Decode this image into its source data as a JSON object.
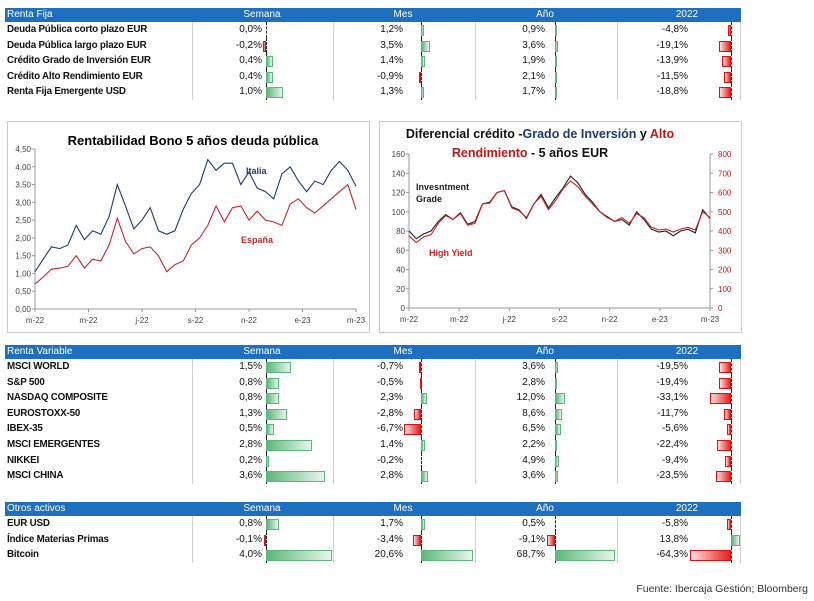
{
  "columns": [
    "Semana",
    "Mes",
    "Año",
    "2022"
  ],
  "tables": [
    {
      "title": "Renta Fija",
      "rows": [
        {
          "name": "Deuda Pública corto plazo EUR",
          "values": [
            "0,0%",
            "1,2%",
            "0,9%",
            "-4,8%"
          ],
          "nums": [
            0,
            1.2,
            0.9,
            -4.8
          ]
        },
        {
          "name": "Deuda Pública largo plazo EUR",
          "values": [
            "-0,2%",
            "3,5%",
            "3,6%",
            "-19,1%"
          ],
          "nums": [
            -0.2,
            3.5,
            3.6,
            -19.1
          ]
        },
        {
          "name": "Crédito Grado de Inversión EUR",
          "values": [
            "0,4%",
            "1,4%",
            "1,9%",
            "-13,9%"
          ],
          "nums": [
            0.4,
            1.4,
            1.9,
            -13.9
          ]
        },
        {
          "name": "Crédito Alto Rendimiento EUR",
          "values": [
            "0,4%",
            "-0,9%",
            "2,1%",
            "-11,5%"
          ],
          "nums": [
            0.4,
            -0.9,
            2.1,
            -11.5
          ]
        },
        {
          "name": "Renta Fija Emergente USD",
          "values": [
            "1,0%",
            "1,3%",
            "1,7%",
            "-18,8%"
          ],
          "nums": [
            1.0,
            1.3,
            1.7,
            -18.8
          ]
        }
      ]
    },
    {
      "title": "Renta Variable",
      "rows": [
        {
          "name": "MSCI WORLD",
          "values": [
            "1,5%",
            "-0,7%",
            "3,6%",
            "-19,5%"
          ],
          "nums": [
            1.5,
            -0.7,
            3.6,
            -19.5
          ]
        },
        {
          "name": "S&P 500",
          "values": [
            "0,8%",
            "-0,5%",
            "2,8%",
            "-19,4%"
          ],
          "nums": [
            0.8,
            -0.5,
            2.8,
            -19.4
          ]
        },
        {
          "name": "NASDAQ COMPOSITE",
          "values": [
            "0,8%",
            "2,3%",
            "12,0%",
            "-33,1%"
          ],
          "nums": [
            0.8,
            2.3,
            12.0,
            -33.1
          ]
        },
        {
          "name": "EUROSTOXX-50",
          "values": [
            "1,3%",
            "-2,8%",
            "8,6%",
            "-11,7%"
          ],
          "nums": [
            1.3,
            -2.8,
            8.6,
            -11.7
          ]
        },
        {
          "name": "IBEX-35",
          "values": [
            "0,5%",
            "-6,7%",
            "6,5%",
            "-5,6%"
          ],
          "nums": [
            0.5,
            -6.7,
            6.5,
            -5.6
          ]
        },
        {
          "name": "MSCI EMERGENTES",
          "values": [
            "2,8%",
            "1,4%",
            "2,2%",
            "-22,4%"
          ],
          "nums": [
            2.8,
            1.4,
            2.2,
            -22.4
          ]
        },
        {
          "name": "NIKKEI",
          "values": [
            "0,2%",
            "-0,2%",
            "4,9%",
            "-9,4%"
          ],
          "nums": [
            0.2,
            -0.2,
            4.9,
            -9.4
          ]
        },
        {
          "name": "MSCI CHINA",
          "values": [
            "3,6%",
            "2,8%",
            "3,6%",
            "-23,5%"
          ],
          "nums": [
            3.6,
            2.8,
            3.6,
            -23.5
          ]
        }
      ]
    },
    {
      "title": "Otros activos",
      "rows": [
        {
          "name": "EUR USD",
          "values": [
            "0,8%",
            "1,7%",
            "0,5%",
            "-5,8%"
          ],
          "nums": [
            0.8,
            1.7,
            0.5,
            -5.8
          ]
        },
        {
          "name": "Índice Materias Primas",
          "values": [
            "-0,1%",
            "-3,4%",
            "-9,1%",
            "13,8%"
          ],
          "nums": [
            -0.1,
            -3.4,
            -9.1,
            13.8
          ]
        },
        {
          "name": "Bitcoin",
          "values": [
            "4,0%",
            "20,6%",
            "68,7%",
            "-64,3%"
          ],
          "nums": [
            4.0,
            20.6,
            68.7,
            -64.3
          ]
        }
      ]
    }
  ],
  "chart_data": [
    {
      "type": "line",
      "title": "Rentabilidad Bono 5 años deuda pública",
      "x_ticks": [
        "m-22",
        "m-22",
        "j-22",
        "s-22",
        "n-22",
        "e-23",
        "m-23"
      ],
      "ylim": [
        0,
        4.5
      ],
      "y_ticks": [
        "0,00",
        "0,50",
        "1,00",
        "1,50",
        "2,00",
        "2,50",
        "3,00",
        "3,50",
        "4,00",
        "4,50"
      ],
      "series": [
        {
          "name": "Italia",
          "color": "#1f3a6e",
          "values": [
            1.05,
            1.4,
            1.75,
            1.7,
            1.8,
            2.35,
            1.95,
            2.2,
            2.1,
            2.6,
            3.5,
            2.9,
            2.25,
            2.5,
            2.85,
            2.2,
            2.1,
            2.2,
            2.8,
            3.25,
            3.5,
            4.2,
            3.9,
            4.1,
            4.1,
            3.5,
            3.85,
            3.4,
            3.3,
            3.1,
            3.8,
            4.0,
            3.6,
            3.3,
            3.6,
            3.5,
            3.9,
            4.15,
            3.9,
            3.45
          ]
        },
        {
          "name": "España",
          "color": "#c0282d",
          "values": [
            0.7,
            0.9,
            1.12,
            1.15,
            1.2,
            1.5,
            1.15,
            1.4,
            1.35,
            1.8,
            2.55,
            1.9,
            1.55,
            1.7,
            1.75,
            1.5,
            1.05,
            1.25,
            1.35,
            1.8,
            2.0,
            2.35,
            2.9,
            2.45,
            2.85,
            2.9,
            2.5,
            2.75,
            2.5,
            2.45,
            2.35,
            2.95,
            3.1,
            2.85,
            2.7,
            2.9,
            3.1,
            3.3,
            3.5,
            2.8
          ]
        }
      ]
    },
    {
      "type": "line",
      "title_parts": [
        "Diferencial crédito -",
        "Grado de Inversión",
        " y ",
        "Alto",
        "Rendimiento",
        " - 5 años EUR"
      ],
      "x_ticks": [
        "m-22",
        "m-22",
        "j-22",
        "s-22",
        "n-22",
        "e-23",
        "m-23"
      ],
      "ylim": [
        0,
        160
      ],
      "y_ticks": [
        "0",
        "20",
        "40",
        "60",
        "80",
        "100",
        "120",
        "140",
        "160"
      ],
      "y2lim": [
        0,
        800
      ],
      "y2_ticks": [
        "0",
        "100",
        "200",
        "300",
        "400",
        "500",
        "600",
        "700",
        "800"
      ],
      "series": [
        {
          "name": "Invesntment Grade",
          "axis": "left",
          "color": "#222222",
          "values": [
            80,
            72,
            77,
            80,
            90,
            97,
            92,
            99,
            87,
            90,
            108,
            110,
            120,
            122,
            105,
            102,
            93,
            108,
            118,
            104,
            115,
            125,
            137,
            130,
            118,
            110,
            100,
            95,
            90,
            92,
            86,
            100,
            92,
            82,
            79,
            80,
            75,
            80,
            82,
            78,
            102,
            93
          ]
        },
        {
          "name": "High Yield",
          "axis": "right",
          "color": "#d42020",
          "values": [
            375,
            340,
            370,
            380,
            440,
            480,
            460,
            490,
            430,
            440,
            540,
            545,
            600,
            610,
            520,
            505,
            470,
            540,
            580,
            510,
            560,
            620,
            660,
            630,
            580,
            540,
            500,
            470,
            450,
            470,
            440,
            490,
            470,
            420,
            405,
            410,
            395,
            410,
            420,
            405,
            500,
            470
          ]
        }
      ]
    }
  ],
  "source": "Fuente: Ibercaja Gestión; Bloomberg"
}
